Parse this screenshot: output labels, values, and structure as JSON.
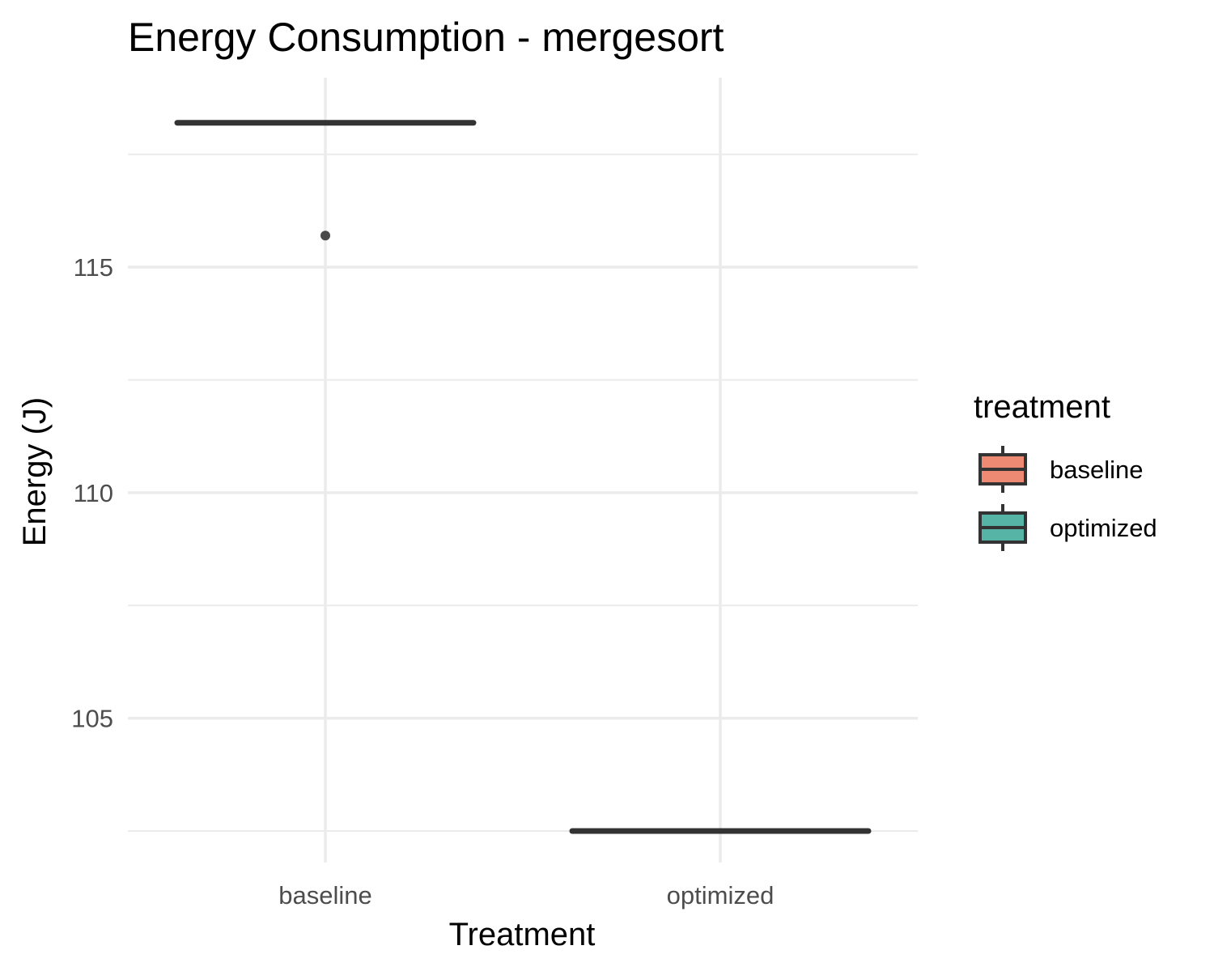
{
  "chart_data": {
    "type": "box",
    "title": "Energy Consumption - mergesort",
    "xlabel": "Treatment",
    "ylabel": "Energy (J)",
    "categories": [
      "baseline",
      "optimized"
    ],
    "ylim": [
      101.8,
      119.2
    ],
    "y_ticks": [
      105,
      110,
      115
    ],
    "y_minor_ticks": [
      102.5,
      107.5,
      112.5,
      117.5
    ],
    "grid": true,
    "series": [
      {
        "name": "baseline",
        "min": 118.2,
        "q1": 118.2,
        "median": 118.2,
        "q3": 118.2,
        "max": 118.2,
        "outliers": [
          115.7
        ],
        "fill": "#ee8a73"
      },
      {
        "name": "optimized",
        "min": 102.5,
        "q1": 102.5,
        "median": 102.5,
        "q3": 102.5,
        "max": 102.5,
        "outliers": [],
        "fill": "#56b4a6"
      }
    ],
    "legend": {
      "title": "treatment",
      "position": "right",
      "items": [
        {
          "label": "baseline",
          "color": "#ee8a73"
        },
        {
          "label": "optimized",
          "color": "#56b4a6"
        }
      ]
    },
    "colors": {
      "box_line": "#333333",
      "outlier": "#4a4a4a"
    }
  }
}
